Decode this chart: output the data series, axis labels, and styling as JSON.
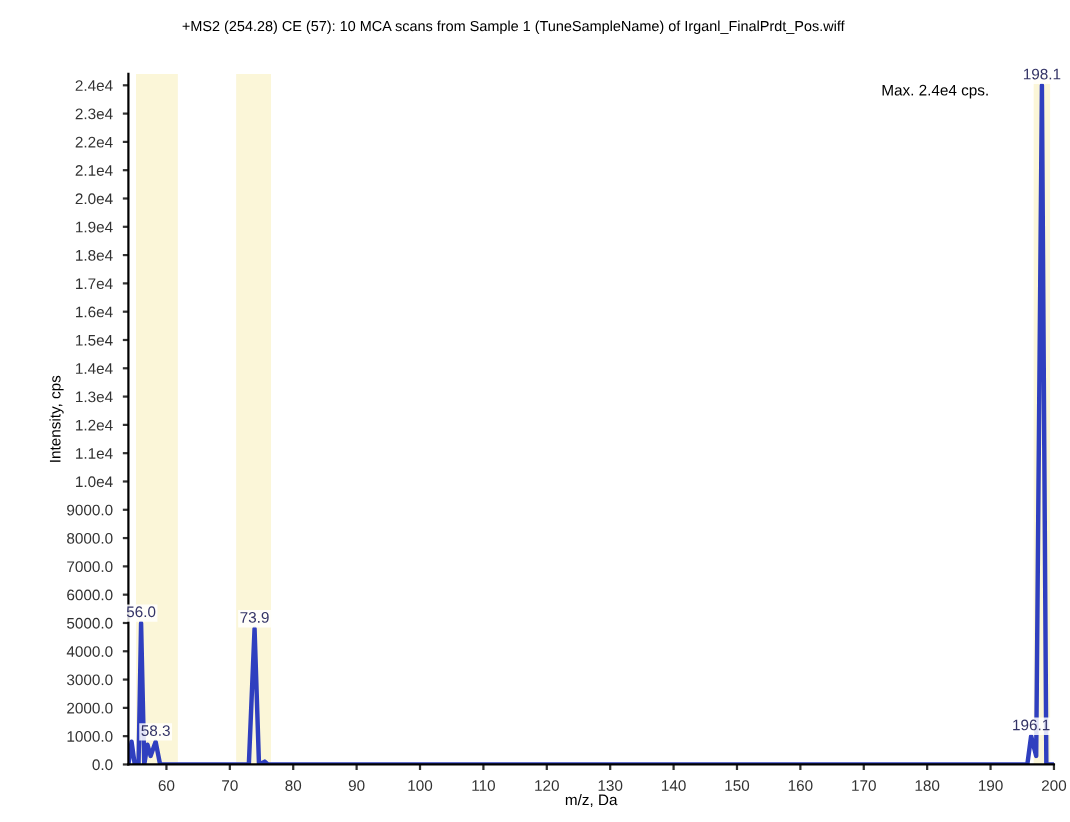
{
  "chart_data": {
    "type": "line",
    "title": "+MS2 (254.28) CE (57): 10 MCA scans from Sample 1 (TuneSampleName) of Irganl_FinalPrdt_Pos.wiff",
    "xlabel": "m/z, Da",
    "ylabel": "Intensity, cps",
    "series": [
      {
        "color": "#2f3fbf",
        "x": [
          54,
          54.5,
          55,
          55.6,
          56.0,
          56.5,
          57.0,
          57.5,
          58.3,
          59.0,
          73.0,
          73.9,
          74.6,
          75.5,
          76.0,
          195.8,
          196.4,
          197.2,
          198.1,
          198.8,
          200
        ],
        "values": [
          0,
          800,
          0,
          0,
          5000,
          0,
          700,
          300,
          800,
          0,
          0,
          4800,
          0,
          100,
          0,
          0,
          1000,
          300,
          24000,
          0,
          0
        ]
      }
    ],
    "xlim": [
      54,
      200
    ],
    "xticks": [
      60,
      70,
      80,
      90,
      100,
      110,
      120,
      130,
      140,
      150,
      160,
      170,
      180,
      190,
      200
    ],
    "ylim": [
      0,
      24400
    ],
    "yticks": [
      {
        "value": 0,
        "label": "0.0"
      },
      {
        "value": 1000,
        "label": "1000.0"
      },
      {
        "value": 2000,
        "label": "2000.0"
      },
      {
        "value": 3000,
        "label": "3000.0"
      },
      {
        "value": 4000,
        "label": "4000.0"
      },
      {
        "value": 5000,
        "label": "5000.0"
      },
      {
        "value": 6000,
        "label": "6000.0"
      },
      {
        "value": 7000,
        "label": "7000.0"
      },
      {
        "value": 8000,
        "label": "8000.0"
      },
      {
        "value": 9000,
        "label": "9000.0"
      },
      {
        "value": 10000,
        "label": "1.0e4"
      },
      {
        "value": 11000,
        "label": "1.1e4"
      },
      {
        "value": 12000,
        "label": "1.2e4"
      },
      {
        "value": 13000,
        "label": "1.3e4"
      },
      {
        "value": 14000,
        "label": "1.4e4"
      },
      {
        "value": 15000,
        "label": "1.5e4"
      },
      {
        "value": 16000,
        "label": "1.6e4"
      },
      {
        "value": 17000,
        "label": "1.7e4"
      },
      {
        "value": 18000,
        "label": "1.8e4"
      },
      {
        "value": 19000,
        "label": "1.9e4"
      },
      {
        "value": 20000,
        "label": "2.0e4"
      },
      {
        "value": 21000,
        "label": "2.1e4"
      },
      {
        "value": 22000,
        "label": "2.2e4"
      },
      {
        "value": 23000,
        "label": "2.3e4"
      },
      {
        "value": 24000,
        "label": "2.4e4"
      }
    ],
    "bands": [
      {
        "axis": "x",
        "from": 55.2,
        "to": 61.8,
        "color": "#fbf6d8"
      },
      {
        "axis": "x",
        "from": 71.0,
        "to": 76.5,
        "color": "#fbf6d8"
      },
      {
        "axis": "x",
        "from": 196.8,
        "to": 199.4,
        "color": "#fbf6d8"
      }
    ],
    "annotations": [
      {
        "text": "56.0",
        "x": 56.0,
        "y": 5000
      },
      {
        "text": "58.3",
        "x": 58.3,
        "y": 800
      },
      {
        "text": "73.9",
        "x": 73.9,
        "y": 4800
      },
      {
        "text": "196.1",
        "x": 196.4,
        "y": 1000
      },
      {
        "text": "198.1",
        "x": 198.1,
        "y": 24000
      },
      "Max. 2.4e4 cps."
    ],
    "grid": false,
    "legend": false
  }
}
